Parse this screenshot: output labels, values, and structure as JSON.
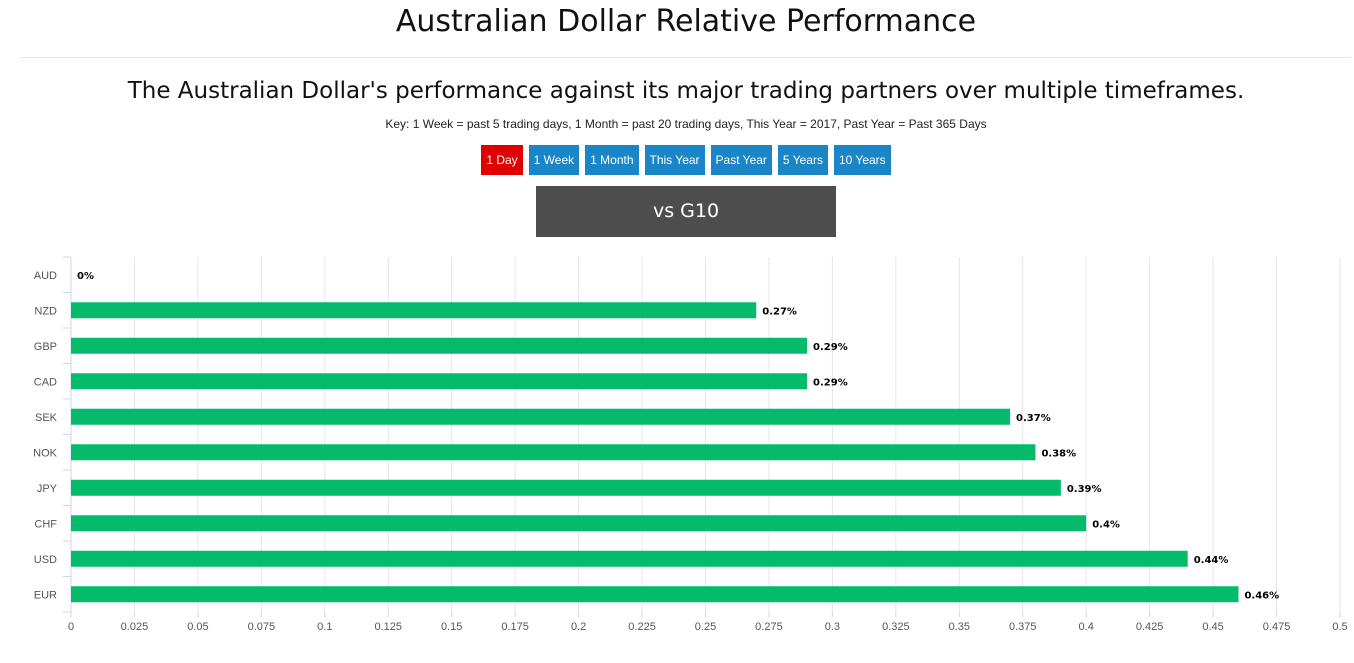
{
  "page": {
    "title": "Australian Dollar Relative Performance",
    "subtitle": "The Australian Dollar's performance against its major trading partners over multiple timeframes.",
    "key": "Key: 1 Week = past 5 trading days, 1 Month = past 20 trading days, This Year = 2017, Past Year = Past 365 Days"
  },
  "timeframes": [
    {
      "label": "1 Day",
      "active": true
    },
    {
      "label": "1 Week",
      "active": false
    },
    {
      "label": "1 Month",
      "active": false
    },
    {
      "label": "This Year",
      "active": false
    },
    {
      "label": "Past Year",
      "active": false
    },
    {
      "label": "5 Years",
      "active": false
    },
    {
      "label": "10 Years",
      "active": false
    }
  ],
  "group_selector": {
    "label": "vs G10"
  },
  "colors": {
    "bar": "#03bb6b",
    "active_button": "#e00000",
    "button": "#1a85c7",
    "selector": "#4d4d4d"
  },
  "chart_data": {
    "type": "bar",
    "orientation": "horizontal",
    "categories": [
      "AUD",
      "NZD",
      "GBP",
      "CAD",
      "SEK",
      "NOK",
      "JPY",
      "CHF",
      "USD",
      "EUR"
    ],
    "values": [
      0,
      0.27,
      0.29,
      0.29,
      0.37,
      0.38,
      0.39,
      0.4,
      0.44,
      0.46
    ],
    "data_labels": [
      "0%",
      "0.27%",
      "0.29%",
      "0.29%",
      "0.37%",
      "0.38%",
      "0.39%",
      "0.4%",
      "0.44%",
      "0.46%"
    ],
    "x_ticks": [
      "0",
      "0.025",
      "0.05",
      "0.075",
      "0.1",
      "0.125",
      "0.15",
      "0.175",
      "0.2",
      "0.225",
      "0.25",
      "0.275",
      "0.3",
      "0.325",
      "0.35",
      "0.375",
      "0.4",
      "0.425",
      "0.45",
      "0.475",
      "0.5"
    ],
    "xlim": [
      0,
      0.5
    ],
    "grid": true
  }
}
